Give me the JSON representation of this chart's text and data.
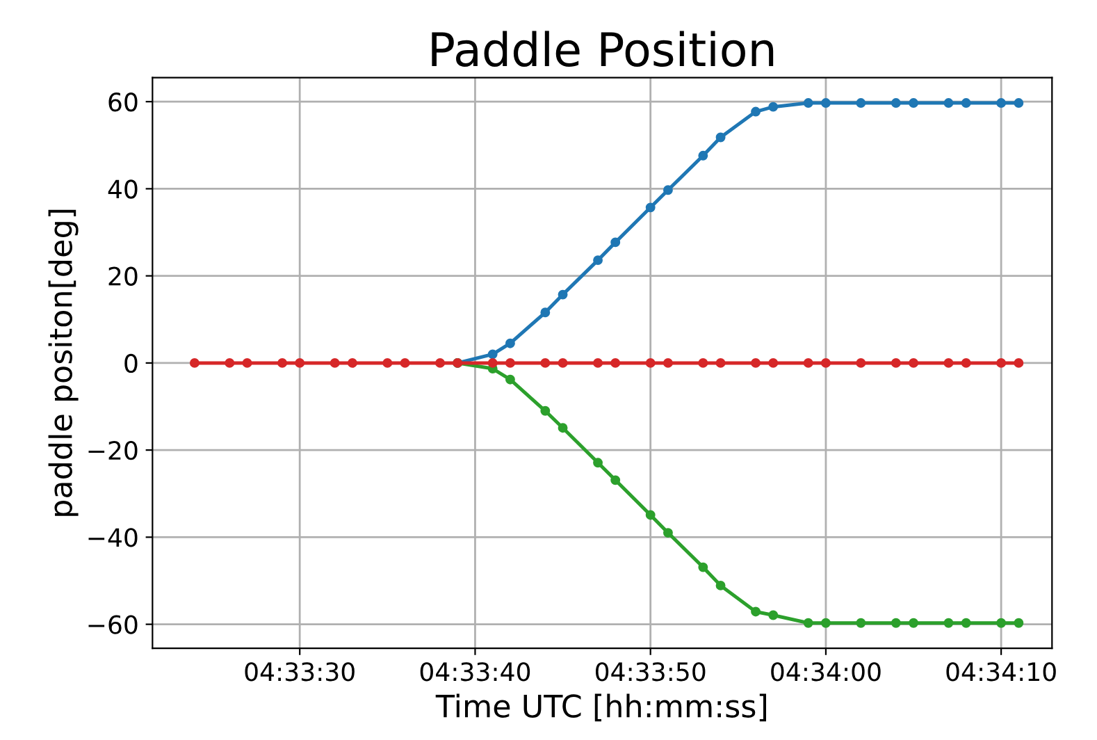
{
  "chart_data": {
    "type": "line",
    "title": "Paddle Position",
    "xlabel": "Time UTC [hh:mm:ss]",
    "ylabel": "paddle positon[deg]",
    "series": [
      {
        "color": "#1f77b4",
        "x": [
          4.560833,
          4.561389,
          4.561667,
          4.562222,
          4.5625,
          4.563056,
          4.563333,
          4.563889,
          4.564167,
          4.564722,
          4.565,
          4.565556,
          4.565833,
          4.566389,
          4.566667,
          4.567222,
          4.567778,
          4.568056,
          4.568611,
          4.568889,
          4.569444,
          4.569722
        ],
        "values": [
          0,
          2.0,
          4.5,
          11.6,
          15.7,
          23.6,
          27.7,
          35.7,
          39.7,
          47.6,
          51.8,
          57.7,
          58.8,
          59.7,
          59.7,
          59.7,
          59.7,
          59.7,
          59.7,
          59.7,
          59.7,
          59.7
        ]
      },
      {
        "color": "#2ca02c",
        "x": [
          4.560833,
          4.561389,
          4.561667,
          4.562222,
          4.5625,
          4.563056,
          4.563333,
          4.563889,
          4.564167,
          4.564722,
          4.565,
          4.565556,
          4.565833,
          4.566389,
          4.566667,
          4.567222,
          4.567778,
          4.568056,
          4.568611,
          4.568889,
          4.569444,
          4.569722
        ],
        "values": [
          0,
          -1.3,
          -3.8,
          -11.0,
          -14.9,
          -22.9,
          -26.9,
          -34.9,
          -39.0,
          -46.9,
          -51.1,
          -57.1,
          -57.9,
          -59.7,
          -59.7,
          -59.7,
          -59.7,
          -59.7,
          -59.7,
          -59.7,
          -59.7,
          -59.7
        ]
      },
      {
        "color": "#d62728",
        "x": [
          4.556667,
          4.557222,
          4.5575,
          4.558056,
          4.558333,
          4.558889,
          4.559167,
          4.559722,
          4.56,
          4.560556,
          4.560833,
          4.561389,
          4.561667,
          4.562222,
          4.5625,
          4.563056,
          4.563333,
          4.563889,
          4.564167,
          4.564722,
          4.565,
          4.565556,
          4.565833,
          4.566389,
          4.566667,
          4.567222,
          4.567778,
          4.568056,
          4.568611,
          4.568889,
          4.569444,
          4.569722
        ],
        "values": [
          0,
          0,
          0,
          0,
          0,
          0,
          0,
          0,
          0,
          0,
          0,
          0,
          0,
          0,
          0,
          0,
          0,
          0,
          0,
          0,
          0,
          0,
          0,
          0,
          0,
          0,
          0,
          0,
          0,
          0,
          0,
          0
        ]
      }
    ],
    "xlim": [
      4.556,
      4.57025
    ],
    "xticks": [
      {
        "value": 4.558333,
        "label": "04:33:30"
      },
      {
        "value": 4.561111,
        "label": "04:33:40"
      },
      {
        "value": 4.563889,
        "label": "04:33:50"
      },
      {
        "value": 4.566667,
        "label": "04:34:00"
      },
      {
        "value": 4.569444,
        "label": "04:34:10"
      }
    ],
    "ylim": [
      -65.5,
      65.5
    ],
    "yticks": [
      -60,
      -40,
      -20,
      0,
      20,
      40,
      60
    ],
    "grid": true,
    "marker": "circle",
    "line_style": "solid"
  }
}
